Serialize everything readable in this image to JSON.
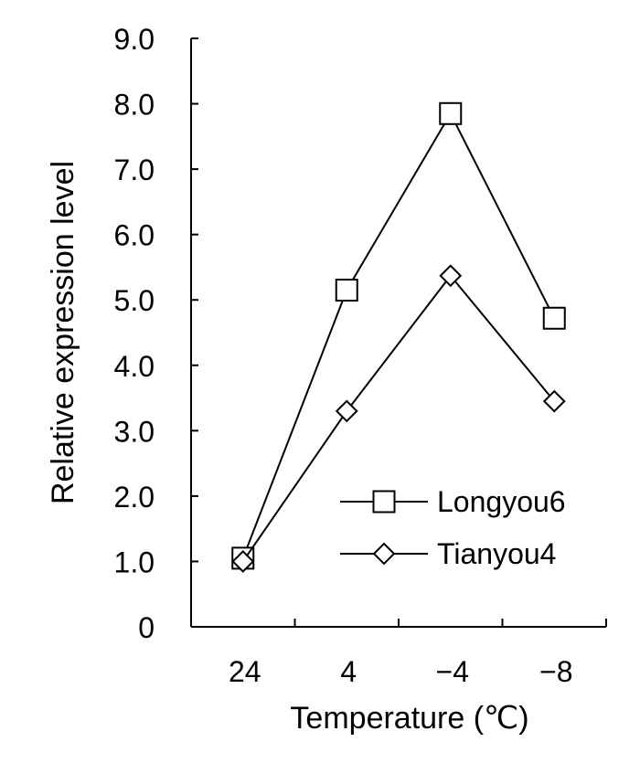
{
  "chart_data": {
    "type": "line",
    "xlabel": "Temperature (℃)",
    "ylabel": "Relative expression level",
    "categories": [
      "24",
      "4",
      "−4",
      "−8"
    ],
    "ylim": [
      0,
      9
    ],
    "yticks": [
      "0",
      "1.0",
      "2.0",
      "3.0",
      "4.0",
      "5.0",
      "6.0",
      "7.0",
      "8.0",
      "9.0"
    ],
    "grid": false,
    "legend_position": "bottom-right",
    "series": [
      {
        "name": "Longyou6",
        "marker": "square",
        "values": [
          1.05,
          5.15,
          7.85,
          4.72
        ]
      },
      {
        "name": "Tianyou4",
        "marker": "diamond",
        "values": [
          1.0,
          3.3,
          5.37,
          3.45
        ]
      }
    ]
  }
}
